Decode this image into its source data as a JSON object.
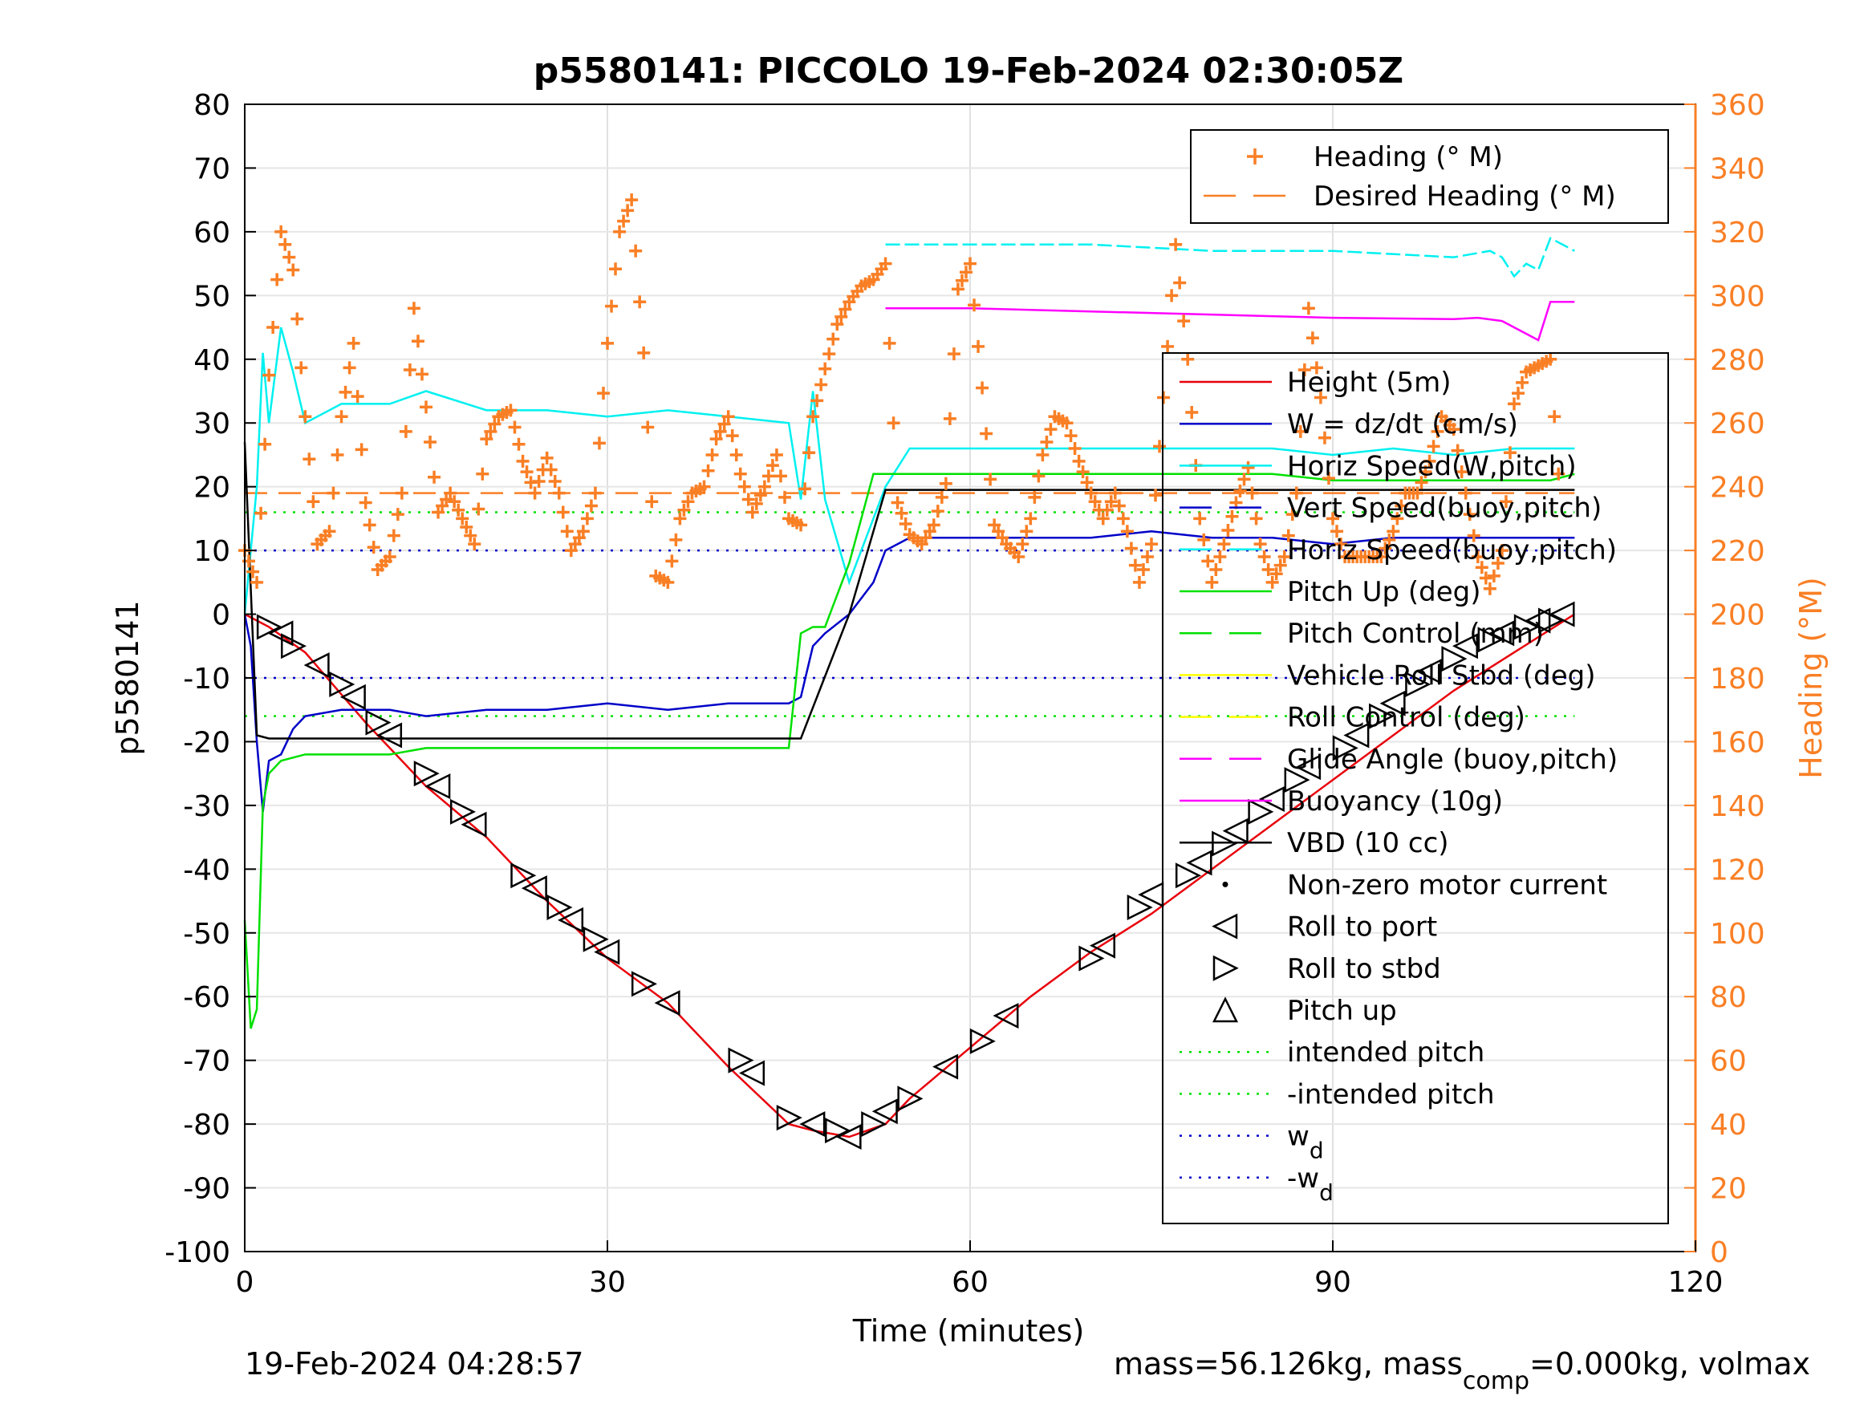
{
  "chart_data": {
    "type": "line",
    "title": "p5580141: PICCOLO 19-Feb-2024 02:30:05Z",
    "xlabel": "Time (minutes)",
    "ylabel": "p5580141",
    "y2label": "Heading (°M)",
    "xlim": [
      0,
      120
    ],
    "ylim": [
      -100,
      80
    ],
    "y2lim": [
      0,
      360
    ],
    "grid": true,
    "xticks": [
      "0",
      "30",
      "60",
      "90",
      "120"
    ],
    "yticks": [
      "80",
      "70",
      "60",
      "50",
      "40",
      "30",
      "20",
      "10",
      "0",
      "-10",
      "-20",
      "-30",
      "-40",
      "-50",
      "-60",
      "-70",
      "-80",
      "-90",
      "-100"
    ],
    "y2ticks": [
      "360",
      "340",
      "320",
      "300",
      "280",
      "260",
      "240",
      "220",
      "200",
      "180",
      "160",
      "140",
      "120",
      "100",
      "80",
      "60",
      "40",
      "20",
      "0"
    ],
    "colors": {
      "heading": "#f97f25",
      "height": "#e8000b",
      "w": "#0000c8",
      "horiz_speed": "#00f0f0",
      "pitch": "#00e000",
      "roll": "#ffff00",
      "glide": "#ff00ff",
      "buoyancy": "#ff00ff",
      "vbd": "#000000",
      "axis_right": "#f97f25"
    },
    "legend_right_axis": [
      {
        "label": "Heading (° M)",
        "style": "plus",
        "color": "#f97f25"
      },
      {
        "label": "Desired Heading (° M)",
        "style": "dash",
        "color": "#f97f25"
      }
    ],
    "legend_left_axis": [
      {
        "label": "Height (5m)",
        "style": "solid",
        "color": "#e8000b"
      },
      {
        "label": "W = dz/dt (cm/s)",
        "style": "solid",
        "color": "#0000c8"
      },
      {
        "label": "Horiz Speed(W,pitch)",
        "style": "solid",
        "color": "#00f0f0"
      },
      {
        "label": "Vert Speed(buoy,pitch)",
        "style": "dash",
        "color": "#0000c8"
      },
      {
        "label": "Horiz Speed(buoy,pitch)",
        "style": "dash",
        "color": "#00f0f0"
      },
      {
        "label": "Pitch Up (deg)",
        "style": "solid",
        "color": "#00e000"
      },
      {
        "label": "Pitch Control (mm)",
        "style": "dash",
        "color": "#00e000"
      },
      {
        "label": "Vehicle Roll Stbd (deg)",
        "style": "solid",
        "color": "#ffff00"
      },
      {
        "label": "Roll Control (deg)",
        "style": "dash",
        "color": "#ffff00"
      },
      {
        "label": "Glide Angle (buoy,pitch)",
        "style": "dash",
        "color": "#ff00ff"
      },
      {
        "label": "Buoyancy (10g)",
        "style": "solid",
        "color": "#ff00ff"
      },
      {
        "label": "VBD (10 cc)",
        "style": "solid",
        "color": "#000000"
      },
      {
        "label": "Non-zero motor current",
        "style": "dot",
        "color": "#000000"
      },
      {
        "label": "Roll to port",
        "style": "tri-left",
        "color": "#000000"
      },
      {
        "label": "Roll to stbd",
        "style": "tri-right",
        "color": "#000000"
      },
      {
        "label": "Pitch up",
        "style": "tri-up",
        "color": "#000000"
      },
      {
        "label": "intended pitch",
        "style": "dotted",
        "color": "#00e000"
      },
      {
        "label": "-intended pitch",
        "style": "dotted",
        "color": "#00e000"
      },
      {
        "label": "w",
        "sub": "d",
        "style": "dotted",
        "color": "#0000c8"
      },
      {
        "label": "-w",
        "sub": "d",
        "style": "dotted",
        "color": "#0000c8"
      }
    ],
    "series": [
      {
        "name": "Height (5m)",
        "axis": "left",
        "x": [
          0,
          1,
          2,
          5,
          10,
          15,
          20,
          25,
          30,
          35,
          40,
          45,
          47,
          50,
          53,
          55,
          60,
          65,
          70,
          75,
          80,
          85,
          90,
          95,
          100,
          105,
          110
        ],
        "y": [
          0,
          -1,
          -2,
          -6,
          -17,
          -27,
          -35,
          -45,
          -54,
          -61,
          -71,
          -80,
          -81,
          -82,
          -80,
          -76,
          -68,
          -60,
          -53,
          -47,
          -40,
          -33,
          -26,
          -19,
          -12,
          -6,
          0
        ]
      },
      {
        "name": "W = dz/dt (cm/s)",
        "axis": "left",
        "x": [
          0,
          0.5,
          1,
          1.5,
          2,
          3,
          4,
          5,
          8,
          12,
          15,
          20,
          25,
          30,
          35,
          40,
          45,
          46,
          47,
          48,
          50,
          52,
          53,
          55,
          60,
          65,
          70,
          75,
          80,
          85,
          90,
          95,
          100,
          105,
          108,
          110
        ],
        "y": [
          0,
          -5,
          -20,
          -31,
          -23,
          -22,
          -18,
          -16,
          -15,
          -15,
          -16,
          -15,
          -15,
          -14,
          -15,
          -14,
          -14,
          -13,
          -5,
          -3,
          0,
          5,
          10,
          12,
          12,
          12,
          12,
          13,
          12,
          12,
          11,
          12,
          12,
          12,
          12,
          12
        ]
      },
      {
        "name": "Horiz Speed(W,pitch)",
        "axis": "left",
        "x": [
          0,
          1,
          1.5,
          2,
          3,
          4,
          5,
          8,
          12,
          15,
          20,
          25,
          30,
          35,
          40,
          45,
          46,
          47,
          48,
          50,
          52,
          53,
          55,
          60,
          65,
          70,
          75,
          80,
          85,
          90,
          95,
          100,
          105,
          108,
          110
        ],
        "y": [
          0,
          20,
          41,
          30,
          45,
          38,
          30,
          33,
          33,
          35,
          32,
          32,
          31,
          32,
          31,
          30,
          18,
          35,
          18,
          5,
          15,
          20,
          26,
          26,
          26,
          26,
          26,
          26,
          26,
          25,
          26,
          25,
          26,
          26,
          26
        ]
      },
      {
        "name": "Pitch Up (deg)",
        "axis": "left",
        "x": [
          0,
          0.5,
          1,
          1.5,
          2,
          3,
          5,
          8,
          12,
          15,
          20,
          25,
          30,
          35,
          40,
          45,
          46,
          47,
          48,
          50,
          52,
          53,
          55,
          60,
          65,
          70,
          75,
          80,
          85,
          90,
          95,
          100,
          105,
          108,
          110
        ],
        "y": [
          -48,
          -65,
          -62,
          -30,
          -25,
          -23,
          -22,
          -22,
          -22,
          -21,
          -21,
          -21,
          -21,
          -21,
          -21,
          -21,
          -3,
          -2,
          -2,
          8,
          22,
          22,
          22,
          22,
          22,
          22,
          22,
          22,
          22,
          21,
          21,
          21,
          21,
          21,
          22
        ]
      },
      {
        "name": "VBD (10 cc)",
        "axis": "left",
        "x": [
          0,
          1,
          2,
          5,
          10,
          20,
          30,
          40,
          46,
          50,
          53,
          55,
          60,
          70,
          80,
          90,
          100,
          110
        ],
        "y": [
          27,
          -19,
          -19.5,
          -19.5,
          -19.5,
          -19.5,
          -19.5,
          -19.5,
          -19.5,
          0,
          19.5,
          19.5,
          19.5,
          19.5,
          19.5,
          19.5,
          19.5,
          19.5
        ]
      },
      {
        "name": "Buoyancy (10g)",
        "axis": "left",
        "x": [
          53,
          60,
          70,
          80,
          90,
          100,
          102,
          104,
          106,
          107,
          108,
          110
        ],
        "y": [
          48,
          48,
          47.5,
          47,
          46.5,
          46.3,
          46.5,
          46,
          44,
          43,
          49,
          49
        ]
      },
      {
        "name": "Horiz Speed(buoy,pitch)",
        "axis": "left",
        "x": [
          53,
          60,
          70,
          80,
          90,
          100,
          103,
          104,
          105,
          106,
          107,
          108,
          109,
          110
        ],
        "y": [
          58,
          58,
          58,
          57,
          57,
          56,
          57,
          56,
          53,
          55,
          54,
          59,
          58,
          57
        ]
      },
      {
        "name": "Heading (° M)",
        "axis": "right",
        "x": [
          0,
          1,
          2,
          3,
          4,
          5,
          6,
          7,
          8,
          9,
          10,
          11,
          12,
          13,
          14,
          15,
          16,
          17,
          18,
          19,
          20,
          21,
          22,
          23,
          24,
          25,
          26,
          27,
          28,
          29,
          30,
          31,
          32,
          33,
          34,
          35,
          36,
          37,
          38,
          39,
          40,
          41,
          42,
          43,
          44,
          45,
          46,
          47,
          48,
          49,
          50,
          51,
          52,
          53,
          54,
          55,
          56,
          57,
          58,
          59,
          60,
          61,
          62,
          63,
          64,
          65,
          66,
          67,
          68,
          69,
          70,
          71,
          72,
          73,
          74,
          75,
          76,
          77,
          78,
          79,
          80,
          81,
          82,
          83,
          84,
          85,
          86,
          87,
          88,
          89,
          90,
          91,
          92,
          93,
          94,
          95,
          96,
          97,
          98,
          99,
          100,
          101,
          102,
          103,
          104,
          105,
          106,
          107,
          108,
          109
        ],
        "y": [
          220,
          210,
          275,
          320,
          308,
          262,
          222,
          226,
          262,
          285,
          235,
          214,
          218,
          238,
          296,
          265,
          232,
          238,
          230,
          222,
          255,
          262,
          264,
          248,
          238,
          249,
          238,
          220,
          226,
          238,
          285,
          320,
          330,
          282,
          212,
          210,
          230,
          238,
          240,
          255,
          262,
          244,
          232,
          240,
          250,
          230,
          228,
          262,
          277,
          291,
          298,
          303,
          305,
          310,
          235,
          225,
          222,
          228,
          241,
          302,
          310,
          271,
          228,
          222,
          218,
          230,
          250,
          262,
          260,
          248,
          238,
          230,
          238,
          226,
          210,
          222,
          268,
          316,
          280,
          230,
          210,
          222,
          235,
          246,
          222,
          210,
          218,
          238,
          296,
          268,
          230,
          218,
          218,
          218,
          218,
          226,
          238,
          238,
          248,
          262,
          258,
          238,
          218,
          208,
          220,
          266,
          276,
          278,
          280,
          226
        ]
      }
    ],
    "reference_lines": [
      {
        "name": "intended pitch",
        "y": 16
      },
      {
        "name": "-intended pitch",
        "y": -16
      },
      {
        "name": "w_d",
        "y": 10
      },
      {
        "name": "-w_d",
        "y": -10
      },
      {
        "name": "Desired Heading (° M)",
        "y2": 238
      }
    ],
    "roll_markers": {
      "x": [
        2,
        3,
        4,
        6,
        8,
        9,
        11,
        12,
        15,
        16,
        18,
        19,
        23,
        24,
        26,
        27,
        29,
        30,
        33,
        35,
        41,
        42,
        45,
        47,
        49,
        50,
        52,
        53,
        55,
        58,
        61,
        63,
        70,
        71,
        74,
        75,
        78,
        79,
        81,
        82,
        84,
        85,
        87,
        88,
        91,
        92,
        94,
        95,
        97,
        98,
        100,
        101,
        103,
        104,
        106,
        107,
        108,
        109
      ],
      "y": [
        -2,
        -3,
        -5,
        -8,
        -11,
        -13,
        -17,
        -19,
        -25,
        -27,
        -31,
        -33,
        -41,
        -43,
        -46,
        -48,
        -51,
        -53,
        -58,
        -61,
        -70,
        -72,
        -79,
        -80,
        -81,
        -82,
        -80,
        -78,
        -76,
        -71,
        -67,
        -63,
        -54,
        -52,
        -46,
        -44,
        -41,
        -39,
        -36,
        -34,
        -31,
        -29,
        -26,
        -24,
        -21,
        -19,
        -16,
        -14,
        -11,
        -9,
        -7,
        -5,
        -4,
        -3,
        -2,
        -1,
        -1,
        0
      ]
    },
    "annotations": {
      "timestamp": "19-Feb-2024 04:28:57",
      "mass_text": "mass=56.126kg, mass",
      "mass_sub": "comp",
      "mass_tail": "=0.000kg, volmax"
    }
  }
}
